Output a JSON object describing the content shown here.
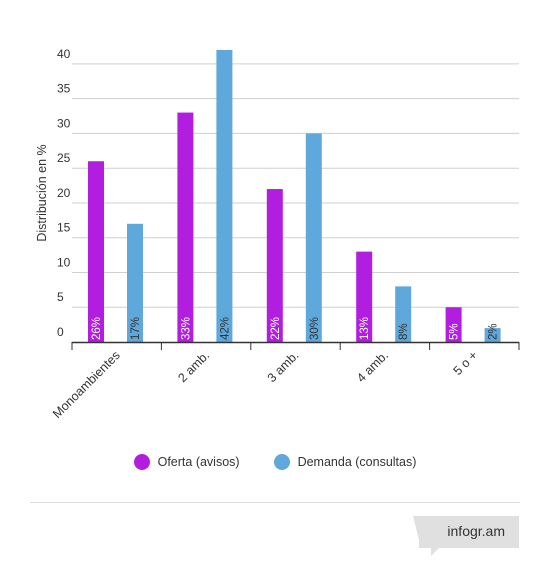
{
  "chart_data": {
    "type": "bar",
    "categories": [
      "Monoambientes",
      "2 amb.",
      "3 amb.",
      "4 amb.",
      "5 o +"
    ],
    "series": [
      {
        "name": "Oferta (avisos)",
        "values": [
          26,
          33,
          22,
          13,
          5
        ],
        "labels": [
          "26%",
          "33%",
          "22%",
          "13%",
          "5%"
        ],
        "color": "#b21ee0"
      },
      {
        "name": "Demanda (consultas)",
        "values": [
          17,
          42,
          30,
          8,
          2
        ],
        "labels": [
          "17%",
          "42%",
          "30%",
          "8%",
          "2%"
        ],
        "color": "#5fa8dc"
      }
    ],
    "ylabel": "Distribución en %",
    "xlabel": "",
    "yticks": [
      0,
      5,
      10,
      15,
      20,
      25,
      30,
      35,
      40
    ],
    "ylim": [
      0,
      42
    ],
    "grid": true,
    "legend_position": "bottom"
  },
  "brand": "infogr.am"
}
